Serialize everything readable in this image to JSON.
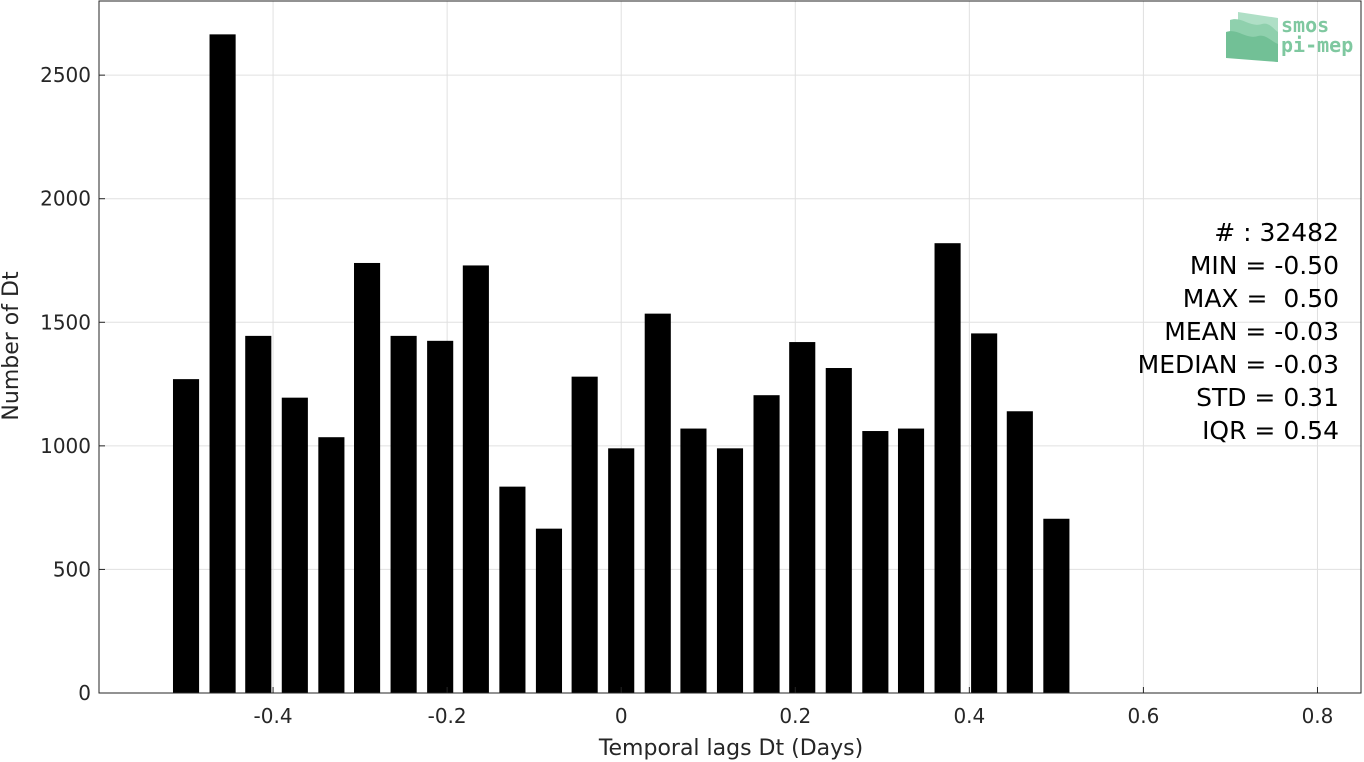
{
  "chart_data": {
    "type": "bar",
    "x": [
      -0.5,
      -0.458,
      -0.417,
      -0.375,
      -0.333,
      -0.292,
      -0.25,
      -0.208,
      -0.167,
      -0.125,
      -0.083,
      -0.042,
      0.0,
      0.042,
      0.083,
      0.125,
      0.167,
      0.208,
      0.25,
      0.292,
      0.333,
      0.375,
      0.417,
      0.458,
      0.5
    ],
    "values": [
      1270,
      2665,
      1445,
      1195,
      1035,
      1740,
      1445,
      1425,
      1730,
      835,
      665,
      1280,
      990,
      1535,
      1070,
      990,
      1205,
      1420,
      1315,
      1060,
      1070,
      1820,
      1455,
      1140,
      705
    ],
    "bar_width": 0.03,
    "xlabel": "Temporal lags Dt (Days)",
    "ylabel": "Number of Dt",
    "xlim": [
      -0.6,
      0.85
    ],
    "ylim": [
      0,
      2800
    ],
    "xticks": [
      -0.4,
      -0.2,
      0,
      0.2,
      0.4,
      0.6,
      0.8
    ],
    "xtick_labels": [
      "-0.4",
      "-0.2",
      "0",
      "0.2",
      "0.4",
      "0.6",
      "0.8"
    ],
    "yticks": [
      0,
      500,
      1000,
      1500,
      2000,
      2500
    ],
    "ytick_labels": [
      "0",
      "500",
      "1000",
      "1500",
      "2000",
      "2500"
    ],
    "grid": true,
    "bar_color": "#000000",
    "grid_color": "#e0e0e0",
    "stats": [
      "# : 32482",
      "MIN = -0.50",
      "MAX =  0.50",
      "MEAN = -0.03",
      "MEDIAN = -0.03",
      "STD = 0.31",
      "IQR = 0.54"
    ]
  },
  "logo": {
    "line1": "smos",
    "line2": "pi-mep",
    "color": "#7fc8a0"
  }
}
